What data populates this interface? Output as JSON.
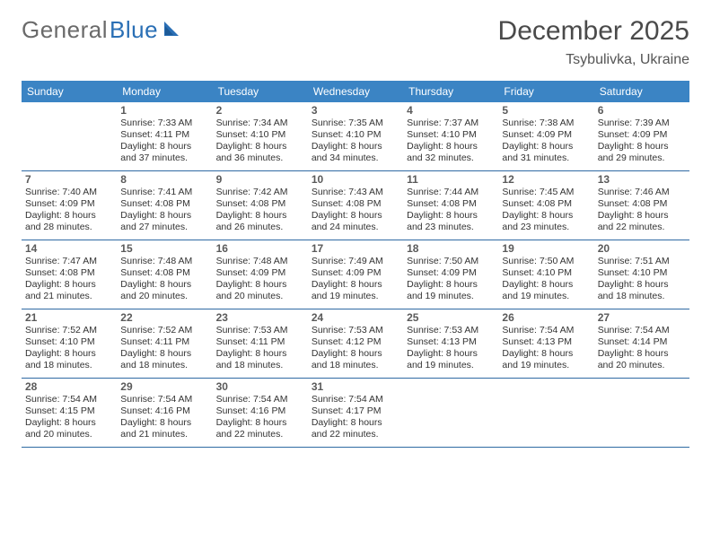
{
  "logo": {
    "text1": "General",
    "text2": "Blue"
  },
  "title": "December 2025",
  "location": "Tsybulivka, Ukraine",
  "colors": {
    "header_bg": "#3b84c4",
    "header_text": "#ffffff",
    "rule": "#2f6aa3",
    "logo_gray": "#6a6a6a",
    "logo_blue": "#2a6fb5"
  },
  "weekdays": [
    "Sunday",
    "Monday",
    "Tuesday",
    "Wednesday",
    "Thursday",
    "Friday",
    "Saturday"
  ],
  "weeks": [
    [
      {
        "n": "",
        "l1": "",
        "l2": "",
        "l3": "",
        "l4": ""
      },
      {
        "n": "1",
        "l1": "Sunrise: 7:33 AM",
        "l2": "Sunset: 4:11 PM",
        "l3": "Daylight: 8 hours",
        "l4": "and 37 minutes."
      },
      {
        "n": "2",
        "l1": "Sunrise: 7:34 AM",
        "l2": "Sunset: 4:10 PM",
        "l3": "Daylight: 8 hours",
        "l4": "and 36 minutes."
      },
      {
        "n": "3",
        "l1": "Sunrise: 7:35 AM",
        "l2": "Sunset: 4:10 PM",
        "l3": "Daylight: 8 hours",
        "l4": "and 34 minutes."
      },
      {
        "n": "4",
        "l1": "Sunrise: 7:37 AM",
        "l2": "Sunset: 4:10 PM",
        "l3": "Daylight: 8 hours",
        "l4": "and 32 minutes."
      },
      {
        "n": "5",
        "l1": "Sunrise: 7:38 AM",
        "l2": "Sunset: 4:09 PM",
        "l3": "Daylight: 8 hours",
        "l4": "and 31 minutes."
      },
      {
        "n": "6",
        "l1": "Sunrise: 7:39 AM",
        "l2": "Sunset: 4:09 PM",
        "l3": "Daylight: 8 hours",
        "l4": "and 29 minutes."
      }
    ],
    [
      {
        "n": "7",
        "l1": "Sunrise: 7:40 AM",
        "l2": "Sunset: 4:09 PM",
        "l3": "Daylight: 8 hours",
        "l4": "and 28 minutes."
      },
      {
        "n": "8",
        "l1": "Sunrise: 7:41 AM",
        "l2": "Sunset: 4:08 PM",
        "l3": "Daylight: 8 hours",
        "l4": "and 27 minutes."
      },
      {
        "n": "9",
        "l1": "Sunrise: 7:42 AM",
        "l2": "Sunset: 4:08 PM",
        "l3": "Daylight: 8 hours",
        "l4": "and 26 minutes."
      },
      {
        "n": "10",
        "l1": "Sunrise: 7:43 AM",
        "l2": "Sunset: 4:08 PM",
        "l3": "Daylight: 8 hours",
        "l4": "and 24 minutes."
      },
      {
        "n": "11",
        "l1": "Sunrise: 7:44 AM",
        "l2": "Sunset: 4:08 PM",
        "l3": "Daylight: 8 hours",
        "l4": "and 23 minutes."
      },
      {
        "n": "12",
        "l1": "Sunrise: 7:45 AM",
        "l2": "Sunset: 4:08 PM",
        "l3": "Daylight: 8 hours",
        "l4": "and 23 minutes."
      },
      {
        "n": "13",
        "l1": "Sunrise: 7:46 AM",
        "l2": "Sunset: 4:08 PM",
        "l3": "Daylight: 8 hours",
        "l4": "and 22 minutes."
      }
    ],
    [
      {
        "n": "14",
        "l1": "Sunrise: 7:47 AM",
        "l2": "Sunset: 4:08 PM",
        "l3": "Daylight: 8 hours",
        "l4": "and 21 minutes."
      },
      {
        "n": "15",
        "l1": "Sunrise: 7:48 AM",
        "l2": "Sunset: 4:08 PM",
        "l3": "Daylight: 8 hours",
        "l4": "and 20 minutes."
      },
      {
        "n": "16",
        "l1": "Sunrise: 7:48 AM",
        "l2": "Sunset: 4:09 PM",
        "l3": "Daylight: 8 hours",
        "l4": "and 20 minutes."
      },
      {
        "n": "17",
        "l1": "Sunrise: 7:49 AM",
        "l2": "Sunset: 4:09 PM",
        "l3": "Daylight: 8 hours",
        "l4": "and 19 minutes."
      },
      {
        "n": "18",
        "l1": "Sunrise: 7:50 AM",
        "l2": "Sunset: 4:09 PM",
        "l3": "Daylight: 8 hours",
        "l4": "and 19 minutes."
      },
      {
        "n": "19",
        "l1": "Sunrise: 7:50 AM",
        "l2": "Sunset: 4:10 PM",
        "l3": "Daylight: 8 hours",
        "l4": "and 19 minutes."
      },
      {
        "n": "20",
        "l1": "Sunrise: 7:51 AM",
        "l2": "Sunset: 4:10 PM",
        "l3": "Daylight: 8 hours",
        "l4": "and 18 minutes."
      }
    ],
    [
      {
        "n": "21",
        "l1": "Sunrise: 7:52 AM",
        "l2": "Sunset: 4:10 PM",
        "l3": "Daylight: 8 hours",
        "l4": "and 18 minutes."
      },
      {
        "n": "22",
        "l1": "Sunrise: 7:52 AM",
        "l2": "Sunset: 4:11 PM",
        "l3": "Daylight: 8 hours",
        "l4": "and 18 minutes."
      },
      {
        "n": "23",
        "l1": "Sunrise: 7:53 AM",
        "l2": "Sunset: 4:11 PM",
        "l3": "Daylight: 8 hours",
        "l4": "and 18 minutes."
      },
      {
        "n": "24",
        "l1": "Sunrise: 7:53 AM",
        "l2": "Sunset: 4:12 PM",
        "l3": "Daylight: 8 hours",
        "l4": "and 18 minutes."
      },
      {
        "n": "25",
        "l1": "Sunrise: 7:53 AM",
        "l2": "Sunset: 4:13 PM",
        "l3": "Daylight: 8 hours",
        "l4": "and 19 minutes."
      },
      {
        "n": "26",
        "l1": "Sunrise: 7:54 AM",
        "l2": "Sunset: 4:13 PM",
        "l3": "Daylight: 8 hours",
        "l4": "and 19 minutes."
      },
      {
        "n": "27",
        "l1": "Sunrise: 7:54 AM",
        "l2": "Sunset: 4:14 PM",
        "l3": "Daylight: 8 hours",
        "l4": "and 20 minutes."
      }
    ],
    [
      {
        "n": "28",
        "l1": "Sunrise: 7:54 AM",
        "l2": "Sunset: 4:15 PM",
        "l3": "Daylight: 8 hours",
        "l4": "and 20 minutes."
      },
      {
        "n": "29",
        "l1": "Sunrise: 7:54 AM",
        "l2": "Sunset: 4:16 PM",
        "l3": "Daylight: 8 hours",
        "l4": "and 21 minutes."
      },
      {
        "n": "30",
        "l1": "Sunrise: 7:54 AM",
        "l2": "Sunset: 4:16 PM",
        "l3": "Daylight: 8 hours",
        "l4": "and 22 minutes."
      },
      {
        "n": "31",
        "l1": "Sunrise: 7:54 AM",
        "l2": "Sunset: 4:17 PM",
        "l3": "Daylight: 8 hours",
        "l4": "and 22 minutes."
      },
      {
        "n": "",
        "l1": "",
        "l2": "",
        "l3": "",
        "l4": ""
      },
      {
        "n": "",
        "l1": "",
        "l2": "",
        "l3": "",
        "l4": ""
      },
      {
        "n": "",
        "l1": "",
        "l2": "",
        "l3": "",
        "l4": ""
      }
    ]
  ]
}
